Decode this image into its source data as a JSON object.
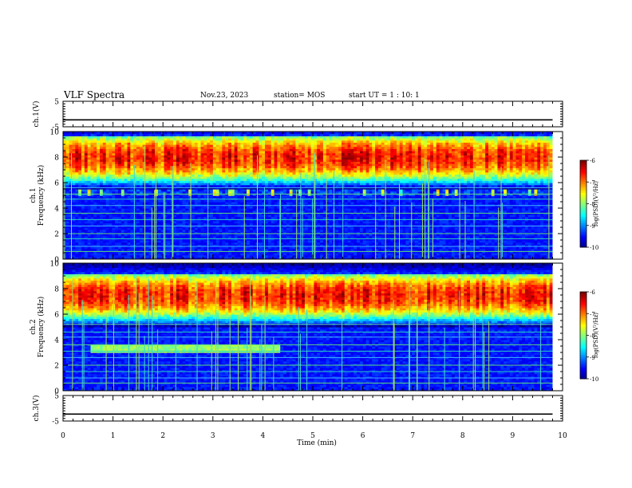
{
  "header": {
    "title": "VLF Spectra",
    "date": "Nov.23, 2023",
    "station": "station= MOS",
    "start_ut": "start  UT =  1 : 10: 1"
  },
  "chart_data": [
    {
      "type": "line",
      "panel": "ch.1(V)",
      "ylabel": "ch.1(V)",
      "ylim": [
        -5,
        5
      ],
      "yticks": [
        "5",
        "-5"
      ],
      "x": [
        0,
        9.8
      ],
      "y": [
        -2.3,
        -2.3
      ],
      "xlim": [
        0,
        10
      ]
    },
    {
      "type": "heatmap",
      "panel": "ch.1 spectrogram",
      "ylabel": "ch.1\nFrequency (kHz)",
      "ylim": [
        0,
        10
      ],
      "yticks": [
        "0",
        "2",
        "4",
        "6",
        "8",
        "10"
      ],
      "xlim": [
        0,
        10
      ],
      "data_end_min": 9.8,
      "band_peak_khz": [
        7.0,
        9.0
      ],
      "band_description": "strong broadband emission 6-9.5 kHz with vertical impulsive spikes; horizontal narrowband lines below 5 kHz",
      "colorbar": {
        "label": "log(PSD)(V²/Hz)",
        "min": -10,
        "max": -6,
        "ticks": [
          "-6",
          "-7",
          "-8",
          "-9",
          "-10"
        ]
      }
    },
    {
      "type": "heatmap",
      "panel": "ch.2 spectrogram",
      "ylabel": "ch.2\nFrequency (kHz)",
      "ylim": [
        0,
        10
      ],
      "yticks": [
        "0",
        "2",
        "4",
        "6",
        "8",
        "10"
      ],
      "xlim": [
        0,
        10
      ],
      "data_end_min": 9.8,
      "band_peak_khz": [
        6.5,
        8.5
      ],
      "band_description": "strong broadband emission 5.5-9.5 kHz with vertical spikes; green band near 3.3 kHz during 0.5-4.3 min",
      "colorbar": {
        "label": "log(PSD)(V²/Hz)",
        "min": -10,
        "max": -6,
        "ticks": [
          "-6",
          "-7",
          "-8",
          "-9",
          "-10"
        ]
      }
    },
    {
      "type": "line",
      "panel": "ch.3(V)",
      "ylabel": "ch.3(V)",
      "ylim": [
        -5,
        5
      ],
      "yticks": [
        "5",
        "-5"
      ],
      "x": [
        0,
        9.8
      ],
      "y": [
        -2.3,
        -2.3
      ],
      "xlim": [
        0,
        10
      ]
    }
  ],
  "xaxis": {
    "label": "Time (min)",
    "ticks": [
      "0",
      "1",
      "2",
      "3",
      "4",
      "5",
      "6",
      "7",
      "8",
      "9",
      "10"
    ]
  },
  "colors": {
    "background": "#000000",
    "axis": "#000000"
  }
}
